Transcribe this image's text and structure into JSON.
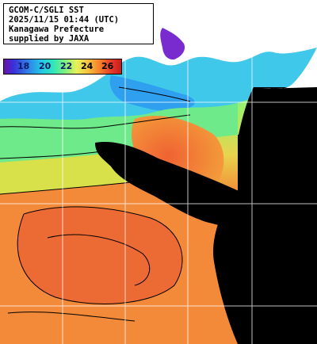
{
  "title": {
    "line1": "GCOM-C/SGLI SST",
    "line2": "2025/11/15 01:44 (UTC)",
    "line3": "Kanagawa Prefecture",
    "line4": "supplied by JAXA"
  },
  "colorbar": {
    "ticks": [
      "18",
      "20",
      "22",
      "24",
      "26"
    ],
    "unit": ""
  },
  "colors": {
    "land": "#ffffff",
    "cloud_or_missing": "#000000",
    "cold": "#4fd0e8",
    "mid": "#7ff080",
    "warm": "#f58a3a",
    "hot": "#e7502a"
  }
}
